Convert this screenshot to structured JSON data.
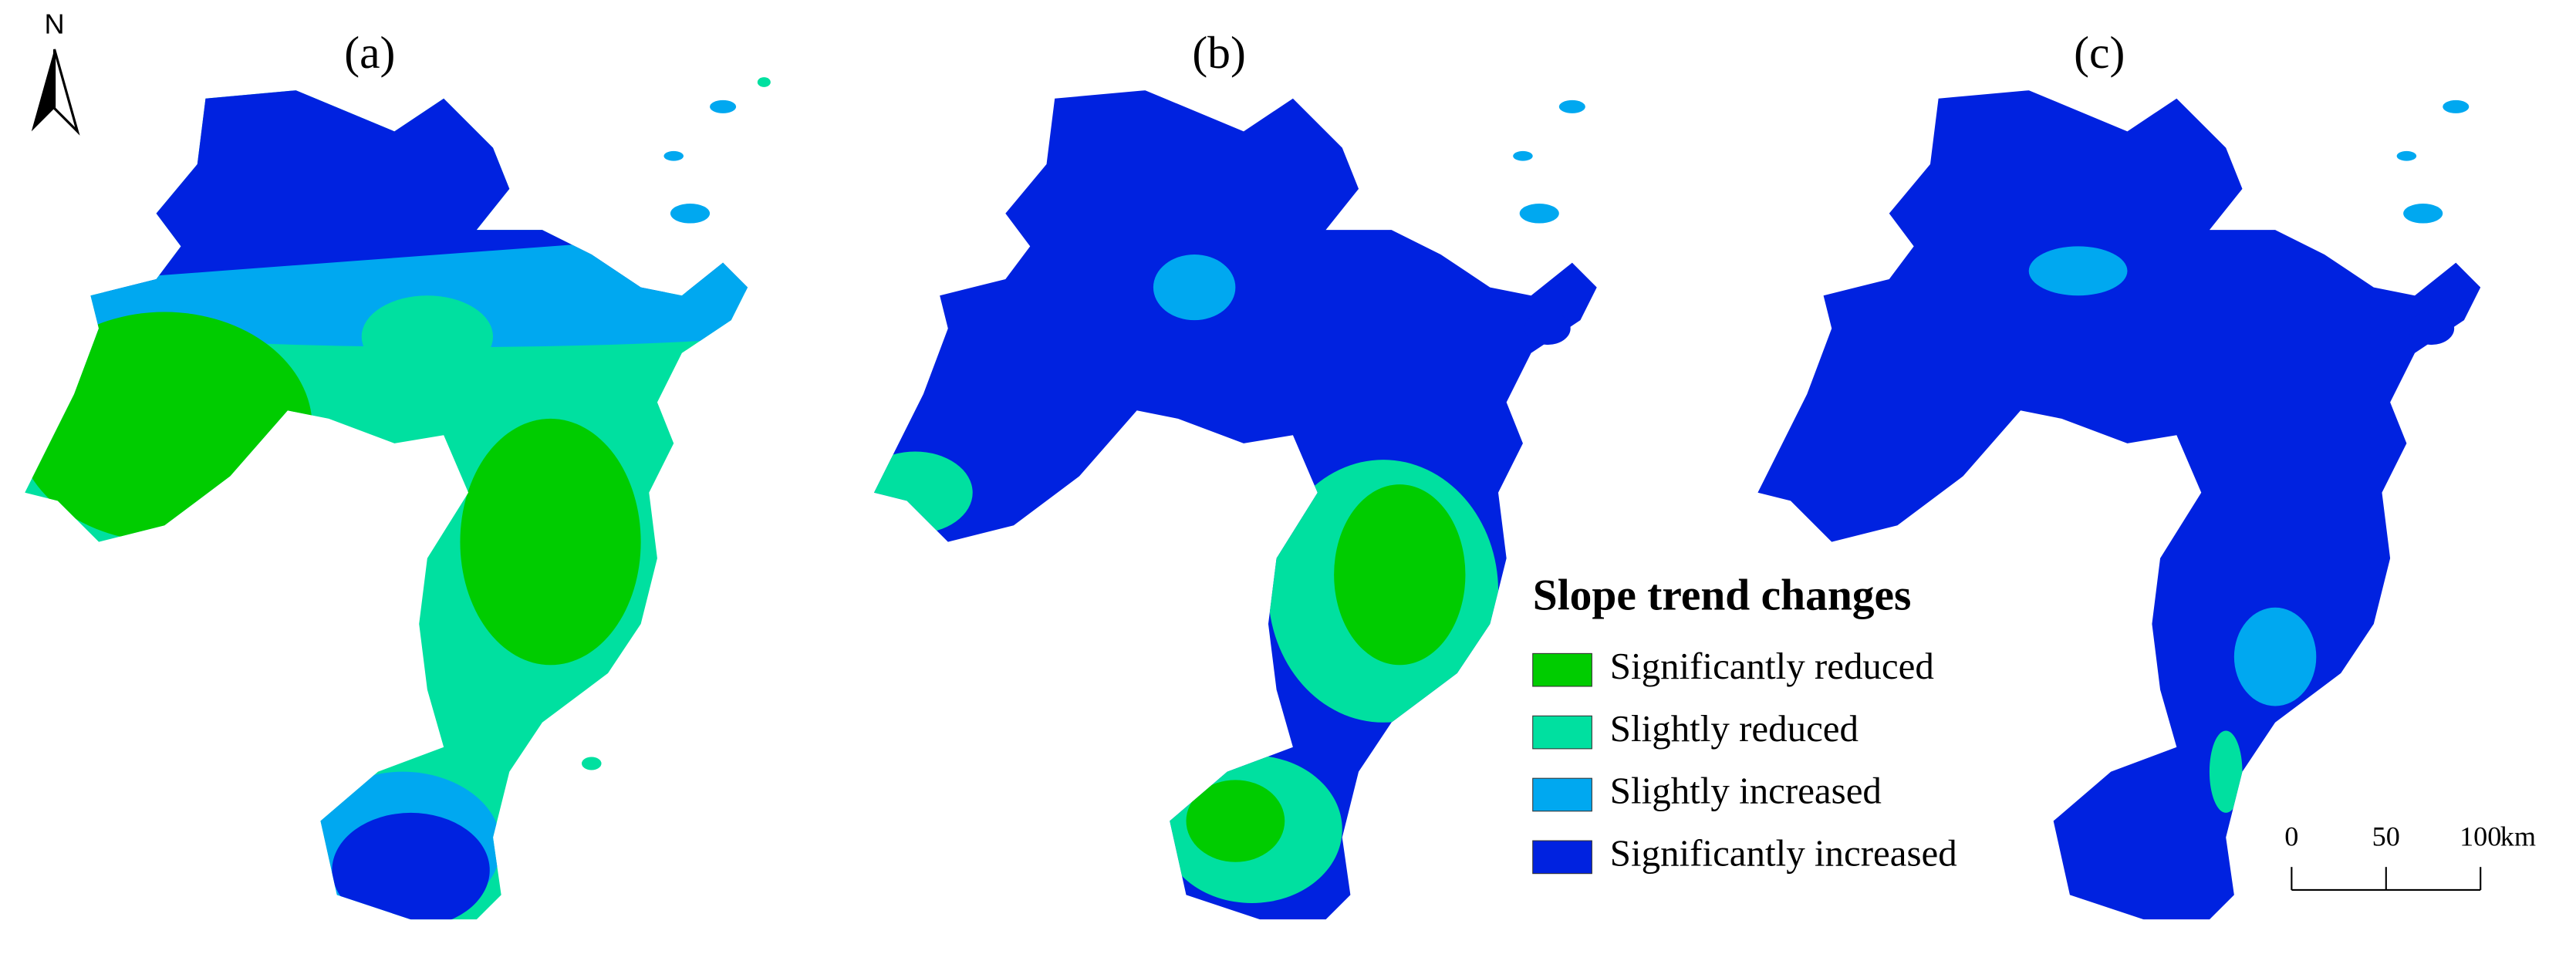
{
  "panels": [
    {
      "label": "(a)"
    },
    {
      "label": "(b)"
    },
    {
      "label": "(c)"
    }
  ],
  "north_arrow": {
    "label": "N"
  },
  "legend": {
    "title": "Slope trend changes",
    "items": [
      {
        "label": "Significantly reduced",
        "color": "#00cc00"
      },
      {
        "label": "Slightly reduced",
        "color": "#00e0a0"
      },
      {
        "label": "Slightly increased",
        "color": "#00a8f0"
      },
      {
        "label": "Significantly increased",
        "color": "#0022e0"
      }
    ]
  },
  "scale_bar": {
    "ticks": [
      0,
      50,
      100
    ],
    "unit": "km"
  }
}
